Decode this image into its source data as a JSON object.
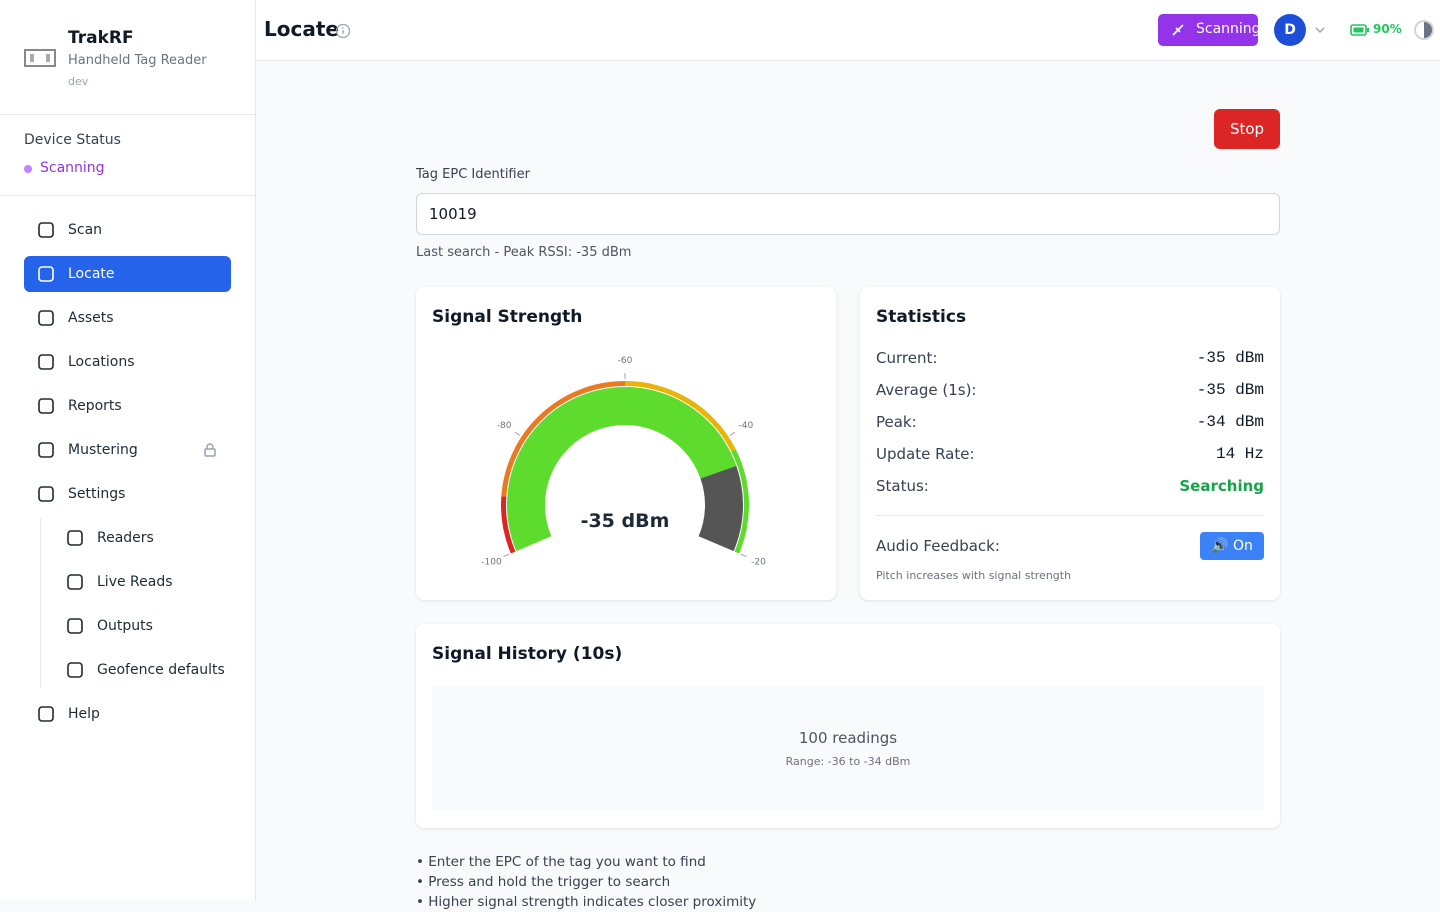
{
  "sidebar": {
    "brand": "TrakRF",
    "subtitle": "Handheld Tag Reader",
    "env": "dev",
    "status_label": "Device Status",
    "status": "Scanning",
    "nav": [
      "Scan",
      "Locate",
      "Assets",
      "Locations",
      "Reports",
      "Mustering",
      "Settings"
    ],
    "subnav": [
      "Readers",
      "Live Reads",
      "Outputs",
      "Geofence defaults"
    ],
    "help": "Help"
  },
  "header": {
    "title": "Locate",
    "scanning": "Scanning",
    "avatar": "D",
    "battery": "90%"
  },
  "stop": "Stop",
  "epc": {
    "label": "Tag EPC Identifier",
    "value": "10019",
    "hint": "Last search - Peak RSSI: -35 dBm"
  },
  "gauge": {
    "title": "Signal Strength",
    "min": -100,
    "max": -20,
    "ticks": [
      -100,
      -80,
      -60,
      -40,
      -20
    ],
    "value": -35,
    "value_label": "-35 dBm"
  },
  "statistics": {
    "title": "Statistics",
    "rows": [
      [
        "Current:",
        "-35 dBm"
      ],
      [
        "Average (1s):",
        "-35 dBm"
      ],
      [
        "Peak:",
        "-34 dBm"
      ],
      [
        "Update Rate:",
        "14 Hz"
      ],
      [
        "Status:",
        "Searching"
      ]
    ],
    "audio_label": "Audio Feedback:",
    "audio_button": "🔊 On",
    "audio_hint": "Pitch increases with signal strength"
  },
  "history": {
    "title": "Signal History (10s)",
    "readings": "100 readings",
    "range": "Range: -36 to -34 dBm"
  },
  "instructions": [
    "• Enter the EPC of the tag you want to find",
    "• Press and hold the trigger to search",
    "• Higher signal strength indicates closer proximity"
  ]
}
